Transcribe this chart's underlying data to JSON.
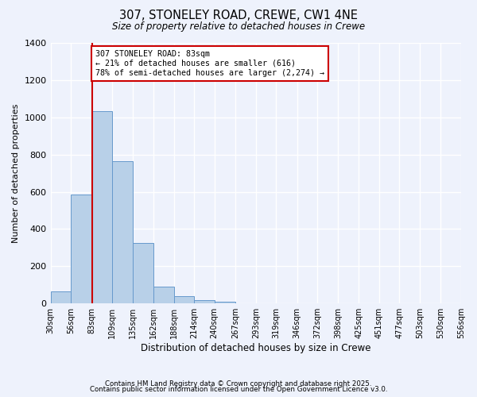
{
  "title": "307, STONELEY ROAD, CREWE, CW1 4NE",
  "subtitle": "Size of property relative to detached houses in Crewe",
  "xlabel": "Distribution of detached houses by size in Crewe",
  "ylabel": "Number of detached properties",
  "bar_values": [
    65,
    585,
    1035,
    765,
    325,
    90,
    38,
    20,
    8,
    2,
    0,
    0,
    0,
    0,
    0,
    0,
    0,
    0,
    0,
    0
  ],
  "bin_labels": [
    "30sqm",
    "56sqm",
    "83sqm",
    "109sqm",
    "135sqm",
    "162sqm",
    "188sqm",
    "214sqm",
    "240sqm",
    "267sqm",
    "293sqm",
    "319sqm",
    "346sqm",
    "372sqm",
    "398sqm",
    "425sqm",
    "451sqm",
    "477sqm",
    "503sqm",
    "530sqm",
    "556sqm"
  ],
  "label_values": [
    30,
    56,
    83,
    109,
    135,
    162,
    188,
    214,
    240,
    267,
    293,
    319,
    346,
    372,
    398,
    425,
    451,
    477,
    503,
    530,
    556
  ],
  "bar_color": "#b8d0e8",
  "bar_edge_color": "#6699cc",
  "property_value": 83,
  "property_line_color": "#cc0000",
  "annotation_line1": "307 STONELEY ROAD: 83sqm",
  "annotation_line2": "← 21% of detached houses are smaller (616)",
  "annotation_line3": "78% of semi-detached houses are larger (2,274) →",
  "annotation_box_color": "#ffffff",
  "annotation_box_edge_color": "#cc0000",
  "ylim": [
    0,
    1400
  ],
  "yticks": [
    0,
    200,
    400,
    600,
    800,
    1000,
    1200,
    1400
  ],
  "background_color": "#eef2fc",
  "grid_color": "#ffffff",
  "footer_line1": "Contains HM Land Registry data © Crown copyright and database right 2025.",
  "footer_line2": "Contains public sector information licensed under the Open Government Licence v3.0."
}
